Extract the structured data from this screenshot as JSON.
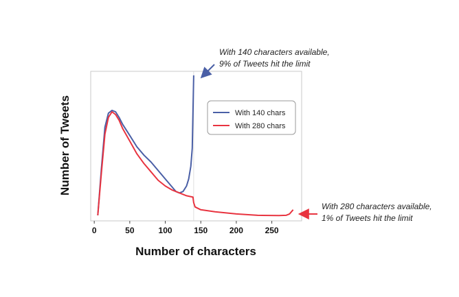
{
  "chart_data": {
    "type": "line",
    "xlabel": "Number of characters",
    "ylabel": "Number of Tweets",
    "xlim": [
      -5,
      292
    ],
    "ylim": [
      0,
      100
    ],
    "xticks": [
      "0",
      "50",
      "100",
      "150",
      "200",
      "250"
    ],
    "xtick_values": [
      0,
      50,
      100,
      150,
      200,
      250
    ],
    "grid": false,
    "legend_position": "top-right",
    "series": [
      {
        "name": "With 140 chars",
        "color": "#4a5fa6",
        "x": [
          5,
          10,
          15,
          20,
          25,
          30,
          35,
          40,
          50,
          60,
          70,
          80,
          90,
          100,
          110,
          115,
          120,
          125,
          130,
          133,
          136,
          138,
          140
        ],
        "y": [
          2,
          35,
          65,
          75,
          77,
          76,
          72,
          67,
          59,
          51,
          45,
          40,
          34,
          28,
          22,
          19,
          18,
          19,
          23,
          28,
          37,
          50,
          102
        ]
      },
      {
        "name": "With 280 chars",
        "color": "#e8333f",
        "x": [
          5,
          10,
          15,
          20,
          25,
          30,
          35,
          40,
          50,
          60,
          70,
          80,
          90,
          100,
          110,
          120,
          130,
          139,
          140,
          142,
          150,
          170,
          200,
          230,
          260,
          270,
          275,
          280
        ],
        "y": [
          2,
          32,
          60,
          72,
          76,
          74,
          70,
          64,
          55,
          46,
          39,
          33,
          27,
          23,
          20,
          18,
          16,
          15,
          11,
          8,
          6,
          4.5,
          3,
          2,
          1.8,
          2,
          3,
          6
        ]
      }
    ],
    "annotations": [
      {
        "lines": [
          "With 140 characters available,",
          "9% of Tweets hit the limit"
        ],
        "color": "#4a5fa6"
      },
      {
        "lines": [
          "With 280 characters available,",
          "1% of Tweets hit the limit"
        ],
        "color": "#e8333f"
      }
    ]
  }
}
